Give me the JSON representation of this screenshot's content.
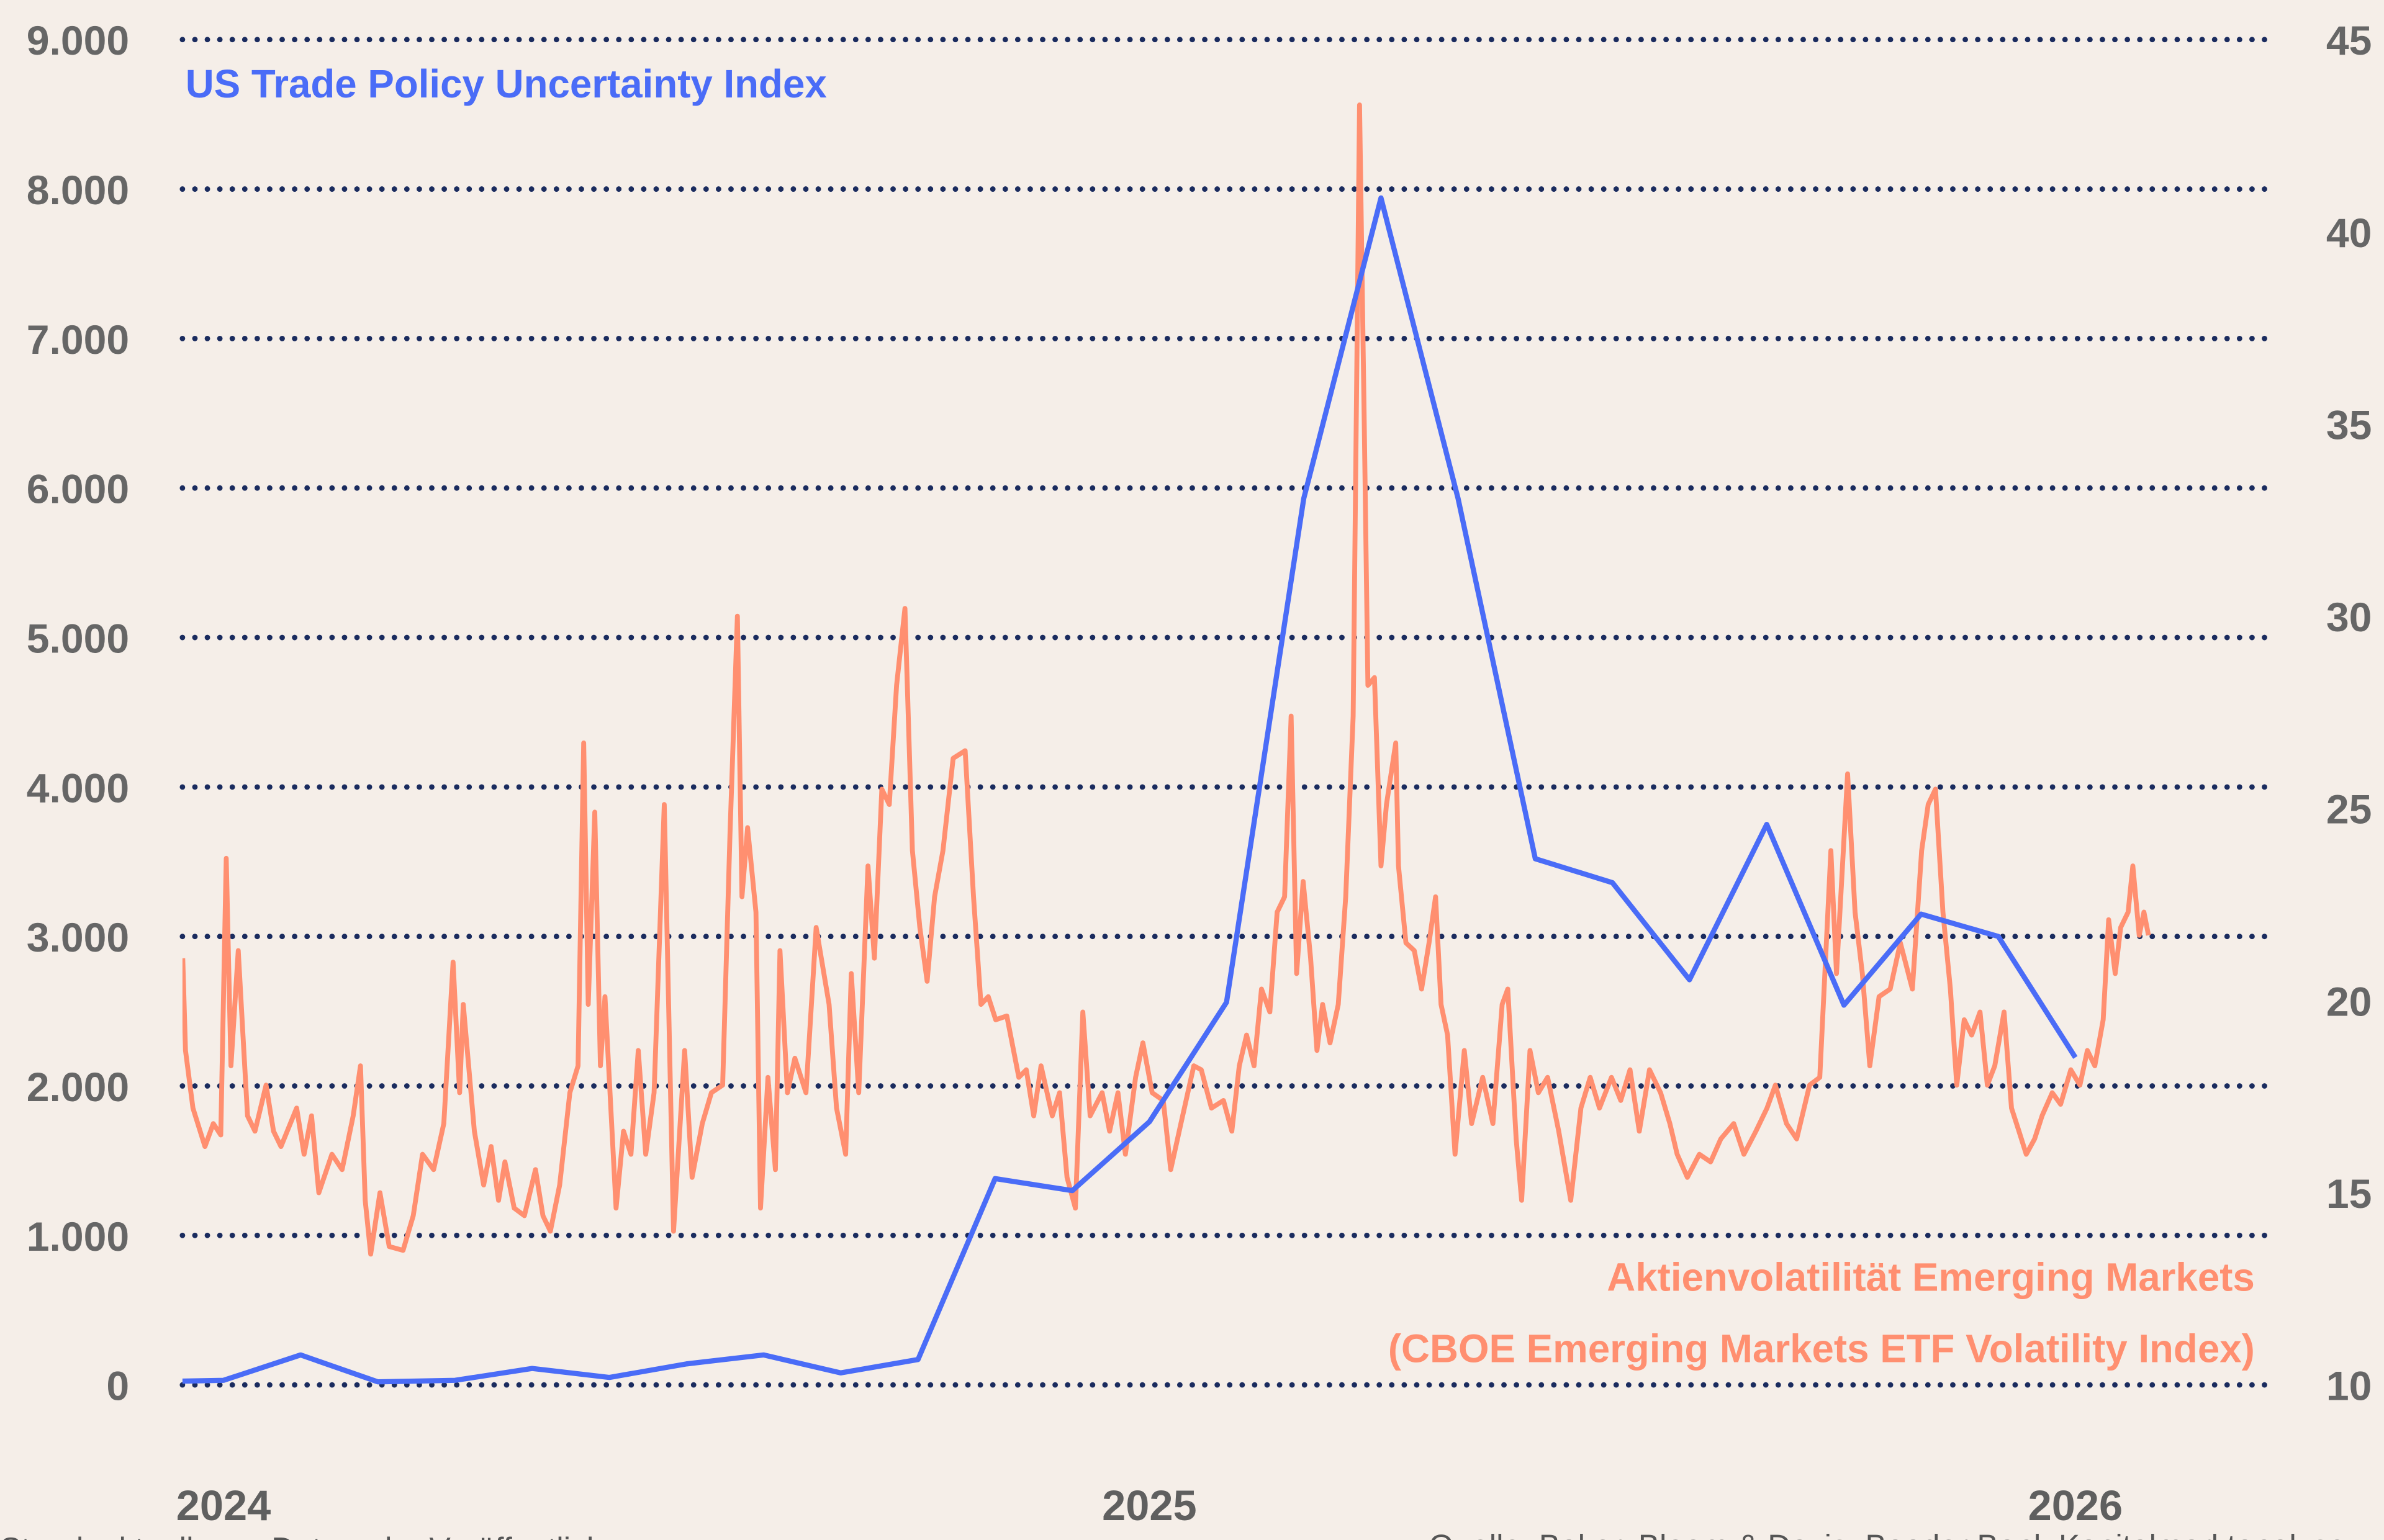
{
  "chart_data": {
    "type": "line",
    "title": "",
    "background": "#f5eee8",
    "grid": true,
    "grid_color": "#1a2b5e",
    "x_ticks": [
      "2024",
      "2025",
      "2026"
    ],
    "y_left": {
      "ticks": [
        "0",
        "1.000",
        "2.000",
        "3.000",
        "4.000",
        "5.000",
        "6.000",
        "7.000",
        "8.000",
        "9.000"
      ],
      "range": [
        0,
        9000
      ]
    },
    "y_right": {
      "ticks": [
        "10",
        "15",
        "20",
        "25",
        "30",
        "35",
        "40",
        "45"
      ],
      "range": [
        10,
        45
      ]
    },
    "series": [
      {
        "name": "US Trade Policy Uncertainty Index",
        "axis": "left",
        "color": "#4a6cf7",
        "points": [
          [
            "2023-12",
            20
          ],
          [
            "2024-01",
            30
          ],
          [
            "2024-02",
            200
          ],
          [
            "2024-03",
            20
          ],
          [
            "2024-04",
            30
          ],
          [
            "2024-05",
            110
          ],
          [
            "2024-06",
            50
          ],
          [
            "2024-07",
            140
          ],
          [
            "2024-08",
            200
          ],
          [
            "2024-09",
            80
          ],
          [
            "2024-10",
            170
          ],
          [
            "2024-11",
            1380
          ],
          [
            "2024-12",
            1300
          ],
          [
            "2025-01",
            1760
          ],
          [
            "2025-02",
            2560
          ],
          [
            "2025-03",
            5930
          ],
          [
            "2025-04",
            7940
          ],
          [
            "2025-05",
            5930
          ],
          [
            "2025-06",
            3520
          ],
          [
            "2025-07",
            3360
          ],
          [
            "2025-08",
            2710
          ],
          [
            "2025-09",
            3750
          ],
          [
            "2025-10",
            2540
          ],
          [
            "2025-11",
            3150
          ],
          [
            "2025-12",
            3000
          ],
          [
            "2026-01",
            2190
          ]
        ]
      },
      {
        "name": "Aktienvolatilität Emerging Markets",
        "name_line2": "(CBOE Emerging Markets ETF Volatility Index)",
        "axis": "right",
        "color": "#ff8f70",
        "points": [
          [
            2023.956,
            21.1
          ],
          [
            2023.959,
            18.7
          ],
          [
            2023.967,
            17.2
          ],
          [
            2023.98,
            16.2
          ],
          [
            2023.989,
            16.8
          ],
          [
            2023.997,
            16.5
          ],
          [
            2024.003,
            23.7
          ],
          [
            2024.008,
            18.3
          ],
          [
            2024.016,
            21.3
          ],
          [
            2024.021,
            19.1
          ],
          [
            2024.026,
            17.0
          ],
          [
            2024.034,
            16.6
          ],
          [
            2024.046,
            17.8
          ],
          [
            2024.054,
            16.6
          ],
          [
            2024.062,
            16.2
          ],
          [
            2024.079,
            17.2
          ],
          [
            2024.087,
            16.0
          ],
          [
            2024.095,
            17.0
          ],
          [
            2024.103,
            15.0
          ],
          [
            2024.117,
            16.0
          ],
          [
            2024.128,
            15.6
          ],
          [
            2024.14,
            17.0
          ],
          [
            2024.148,
            18.3
          ],
          [
            2024.153,
            14.8
          ],
          [
            2024.159,
            13.4
          ],
          [
            2024.169,
            15.0
          ],
          [
            2024.179,
            13.6
          ],
          [
            2024.194,
            13.5
          ],
          [
            2024.205,
            14.4
          ],
          [
            2024.215,
            16.0
          ],
          [
            2024.227,
            15.6
          ],
          [
            2024.238,
            16.8
          ],
          [
            2024.248,
            21.0
          ],
          [
            2024.255,
            17.6
          ],
          [
            2024.259,
            19.9
          ],
          [
            2024.271,
            16.6
          ],
          [
            2024.281,
            15.2
          ],
          [
            2024.289,
            16.2
          ],
          [
            2024.297,
            14.8
          ],
          [
            2024.304,
            15.8
          ],
          [
            2024.314,
            14.6
          ],
          [
            2024.325,
            14.4
          ],
          [
            2024.337,
            15.6
          ],
          [
            2024.345,
            14.4
          ],
          [
            2024.353,
            14.0
          ],
          [
            2024.363,
            15.2
          ],
          [
            2024.374,
            17.6
          ],
          [
            2024.383,
            18.3
          ],
          [
            2024.389,
            26.7
          ],
          [
            2024.394,
            19.9
          ],
          [
            2024.401,
            24.9
          ],
          [
            2024.407,
            18.3
          ],
          [
            2024.412,
            20.1
          ],
          [
            2024.424,
            14.6
          ],
          [
            2024.432,
            16.6
          ],
          [
            2024.44,
            16.0
          ],
          [
            2024.448,
            18.7
          ],
          [
            2024.456,
            16.0
          ],
          [
            2024.465,
            17.6
          ],
          [
            2024.476,
            25.1
          ],
          [
            2024.486,
            14.0
          ],
          [
            2024.498,
            18.7
          ],
          [
            2024.506,
            15.4
          ],
          [
            2024.517,
            16.8
          ],
          [
            2024.527,
            17.6
          ],
          [
            2024.539,
            17.8
          ],
          [
            2024.547,
            24.3
          ],
          [
            2024.555,
            30.0
          ],
          [
            2024.56,
            22.7
          ],
          [
            2024.566,
            24.5
          ],
          [
            2024.575,
            22.3
          ],
          [
            2024.58,
            14.6
          ],
          [
            2024.588,
            18.0
          ],
          [
            2024.596,
            15.6
          ],
          [
            2024.601,
            21.3
          ],
          [
            2024.609,
            17.6
          ],
          [
            2024.617,
            18.5
          ],
          [
            2024.629,
            17.6
          ],
          [
            2024.64,
            21.9
          ],
          [
            2024.654,
            19.9
          ],
          [
            2024.662,
            17.2
          ],
          [
            2024.672,
            16.0
          ],
          [
            2024.678,
            20.7
          ],
          [
            2024.686,
            17.6
          ],
          [
            2024.696,
            23.5
          ],
          [
            2024.703,
            21.1
          ],
          [
            2024.711,
            25.5
          ],
          [
            2024.719,
            25.1
          ],
          [
            2024.727,
            28.2
          ],
          [
            2024.736,
            30.2
          ],
          [
            2024.744,
            23.9
          ],
          [
            2024.752,
            21.9
          ],
          [
            2024.76,
            20.5
          ],
          [
            2024.768,
            22.7
          ],
          [
            2024.777,
            23.9
          ],
          [
            2024.788,
            26.3
          ],
          [
            2024.801,
            26.5
          ],
          [
            2024.81,
            22.7
          ],
          [
            2024.818,
            19.9
          ],
          [
            2024.826,
            20.1
          ],
          [
            2024.834,
            19.5
          ],
          [
            2024.846,
            19.6
          ],
          [
            2024.859,
            18.0
          ],
          [
            2024.867,
            18.2
          ],
          [
            2024.875,
            17.0
          ],
          [
            2024.883,
            18.3
          ],
          [
            2024.895,
            17.0
          ],
          [
            2024.903,
            17.6
          ],
          [
            2024.911,
            15.4
          ],
          [
            2024.92,
            14.6
          ],
          [
            2024.928,
            19.7
          ],
          [
            2024.936,
            17.0
          ],
          [
            2024.949,
            17.6
          ],
          [
            2024.957,
            16.6
          ],
          [
            2024.966,
            17.6
          ],
          [
            2024.974,
            16.0
          ],
          [
            2024.985,
            18.0
          ],
          [
            2024.993,
            18.9
          ],
          [
            2025.003,
            17.6
          ],
          [
            2025.015,
            17.4
          ],
          [
            2025.023,
            15.6
          ],
          [
            2025.034,
            16.8
          ],
          [
            2025.048,
            18.3
          ],
          [
            2025.056,
            18.2
          ],
          [
            2025.067,
            17.2
          ],
          [
            2025.08,
            17.4
          ],
          [
            2025.089,
            16.6
          ],
          [
            2025.097,
            18.3
          ],
          [
            2025.105,
            19.1
          ],
          [
            2025.113,
            18.3
          ],
          [
            2025.121,
            20.3
          ],
          [
            2025.13,
            19.7
          ],
          [
            2025.138,
            22.3
          ],
          [
            2025.146,
            22.7
          ],
          [
            2025.153,
            27.4
          ],
          [
            2025.159,
            20.7
          ],
          [
            2025.166,
            23.1
          ],
          [
            2025.174,
            21.1
          ],
          [
            2025.181,
            18.7
          ],
          [
            2025.187,
            19.9
          ],
          [
            2025.195,
            18.9
          ],
          [
            2025.204,
            19.9
          ],
          [
            2025.212,
            22.7
          ],
          [
            2025.22,
            27.4
          ],
          [
            2025.227,
            43.3
          ],
          [
            2025.232,
            35.0
          ],
          [
            2025.236,
            28.2
          ],
          [
            2025.243,
            28.4
          ],
          [
            2025.25,
            23.5
          ],
          [
            2025.256,
            25.1
          ],
          [
            2025.266,
            26.7
          ],
          [
            2025.269,
            23.5
          ],
          [
            2025.277,
            21.5
          ],
          [
            2025.286,
            21.3
          ],
          [
            2025.294,
            20.3
          ],
          [
            2025.302,
            21.5
          ],
          [
            2025.309,
            22.7
          ],
          [
            2025.315,
            19.9
          ],
          [
            2025.322,
            19.1
          ],
          [
            2025.33,
            16.0
          ],
          [
            2025.34,
            18.7
          ],
          [
            2025.348,
            16.8
          ],
          [
            2025.36,
            18.0
          ],
          [
            2025.371,
            16.8
          ],
          [
            2025.381,
            19.9
          ],
          [
            2025.387,
            20.3
          ],
          [
            2025.396,
            16.4
          ],
          [
            2025.402,
            14.8
          ],
          [
            2025.411,
            18.7
          ],
          [
            2025.42,
            17.6
          ],
          [
            2025.43,
            18.0
          ],
          [
            2025.442,
            16.6
          ],
          [
            2025.455,
            14.8
          ],
          [
            2025.466,
            17.2
          ],
          [
            2025.476,
            18.0
          ],
          [
            2025.486,
            17.2
          ],
          [
            2025.499,
            18.0
          ],
          [
            2025.509,
            17.4
          ],
          [
            2025.519,
            18.2
          ],
          [
            2025.529,
            16.6
          ],
          [
            2025.54,
            18.2
          ],
          [
            2025.552,
            17.6
          ],
          [
            2025.562,
            16.8
          ],
          [
            2025.57,
            16.0
          ],
          [
            2025.581,
            15.4
          ],
          [
            2025.594,
            16.0
          ],
          [
            2025.606,
            15.8
          ],
          [
            2025.617,
            16.4
          ],
          [
            2025.631,
            16.8
          ],
          [
            2025.642,
            16.0
          ],
          [
            2025.655,
            16.6
          ],
          [
            2025.667,
            17.2
          ],
          [
            2025.676,
            17.8
          ],
          [
            2025.688,
            16.8
          ],
          [
            2025.699,
            16.4
          ],
          [
            2025.713,
            17.8
          ],
          [
            2025.724,
            18.0
          ],
          [
            2025.736,
            23.9
          ],
          [
            2025.742,
            20.7
          ],
          [
            2025.754,
            25.9
          ],
          [
            2025.762,
            22.3
          ],
          [
            2025.77,
            20.7
          ],
          [
            2025.778,
            18.3
          ],
          [
            2025.788,
            20.1
          ],
          [
            2025.8,
            20.3
          ],
          [
            2025.811,
            21.5
          ],
          [
            2025.824,
            20.3
          ],
          [
            2025.834,
            23.9
          ],
          [
            2025.841,
            25.1
          ],
          [
            2025.849,
            25.5
          ],
          [
            2025.857,
            22.3
          ],
          [
            2025.865,
            20.3
          ],
          [
            2025.872,
            17.8
          ],
          [
            2025.88,
            19.5
          ],
          [
            2025.888,
            19.1
          ],
          [
            2025.897,
            19.7
          ],
          [
            2025.905,
            17.8
          ],
          [
            2025.913,
            18.3
          ],
          [
            2025.923,
            19.7
          ],
          [
            2025.931,
            17.2
          ],
          [
            2025.939,
            16.6
          ],
          [
            2025.947,
            16.0
          ],
          [
            2025.956,
            16.4
          ],
          [
            2025.964,
            17.0
          ],
          [
            2025.975,
            17.6
          ],
          [
            2025.984,
            17.3
          ],
          [
            2025.995,
            18.2
          ],
          [
            2026.005,
            17.8
          ],
          [
            2026.013,
            18.7
          ],
          [
            2026.021,
            18.3
          ],
          [
            2026.03,
            19.5
          ],
          [
            2026.036,
            22.1
          ],
          [
            2026.043,
            20.7
          ],
          [
            2026.049,
            21.9
          ],
          [
            2026.057,
            22.3
          ],
          [
            2026.062,
            23.5
          ],
          [
            2026.069,
            21.7
          ],
          [
            2026.074,
            22.3
          ],
          [
            2026.079,
            21.7
          ]
        ]
      }
    ]
  },
  "footer": {
    "left": "Stand: aktuell zum Datum der Veröffentlichung",
    "right": "Quelle: Baker, Bloom & Davis, Baader Bank Kapitalmarktanalyse"
  }
}
